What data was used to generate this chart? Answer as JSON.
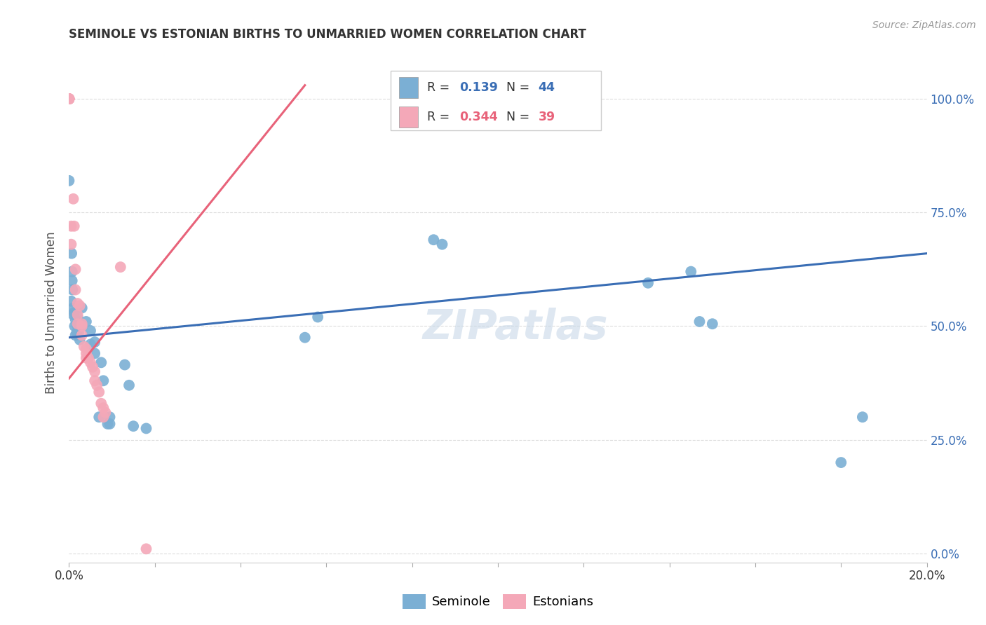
{
  "title": "SEMINOLE VS ESTONIAN BIRTHS TO UNMARRIED WOMEN CORRELATION CHART",
  "source": "Source: ZipAtlas.com",
  "ylabel": "Births to Unmarried Women",
  "seminole_color": "#7BAFD4",
  "estonian_color": "#F4A8B8",
  "seminole_line_color": "#3A6EB5",
  "estonian_line_color": "#E8637A",
  "watermark": "ZIPatlas",
  "xlim": [
    0.0,
    0.2
  ],
  "ylim": [
    -0.02,
    1.08
  ],
  "ytick_vals": [
    0.0,
    0.25,
    0.5,
    0.75,
    1.0
  ],
  "xtick_vals": [
    0.0,
    0.02,
    0.04,
    0.06,
    0.08,
    0.1,
    0.12,
    0.14,
    0.16,
    0.18,
    0.2
  ],
  "seminole_points": [
    [
      0.0005,
      0.555
    ],
    [
      0.0006,
      0.66
    ],
    [
      0.0007,
      0.6
    ],
    [
      0.0007,
      0.62
    ],
    [
      0.0008,
      0.58
    ],
    [
      0.001,
      0.525
    ],
    [
      0.001,
      0.54
    ],
    [
      0.0012,
      0.53
    ],
    [
      0.0013,
      0.5
    ],
    [
      0.0015,
      0.515
    ],
    [
      0.0015,
      0.48
    ],
    [
      0.0018,
      0.485
    ],
    [
      0.002,
      0.52
    ],
    [
      0.002,
      0.5
    ],
    [
      0.0022,
      0.485
    ],
    [
      0.0025,
      0.47
    ],
    [
      0.003,
      0.54
    ],
    [
      0.003,
      0.5
    ],
    [
      0.004,
      0.51
    ],
    [
      0.005,
      0.46
    ],
    [
      0.005,
      0.49
    ],
    [
      0.006,
      0.465
    ],
    [
      0.006,
      0.44
    ],
    [
      0.007,
      0.3
    ],
    [
      0.0075,
      0.42
    ],
    [
      0.008,
      0.38
    ],
    [
      0.009,
      0.285
    ],
    [
      0.0095,
      0.3
    ],
    [
      0.0095,
      0.285
    ],
    [
      0.013,
      0.415
    ],
    [
      0.014,
      0.37
    ],
    [
      0.015,
      0.28
    ],
    [
      0.018,
      0.275
    ],
    [
      0.055,
      0.475
    ],
    [
      0.058,
      0.52
    ],
    [
      0.085,
      0.69
    ],
    [
      0.087,
      0.68
    ],
    [
      0.135,
      0.595
    ],
    [
      0.145,
      0.62
    ],
    [
      0.147,
      0.51
    ],
    [
      0.15,
      0.505
    ],
    [
      0.18,
      0.2
    ],
    [
      0.185,
      0.3
    ],
    [
      0.0,
      0.82
    ]
  ],
  "estonian_points": [
    [
      0.0,
      1.0
    ],
    [
      0.0,
      1.0
    ],
    [
      0.0,
      1.0
    ],
    [
      0.0,
      1.0
    ],
    [
      0.0,
      1.0
    ],
    [
      0.0,
      1.0
    ],
    [
      0.0,
      1.0
    ],
    [
      0.0,
      1.0
    ],
    [
      0.0,
      1.0
    ],
    [
      0.0005,
      0.68
    ],
    [
      0.0005,
      0.72
    ],
    [
      0.001,
      0.78
    ],
    [
      0.0012,
      0.72
    ],
    [
      0.0015,
      0.58
    ],
    [
      0.0015,
      0.625
    ],
    [
      0.002,
      0.55
    ],
    [
      0.002,
      0.525
    ],
    [
      0.002,
      0.505
    ],
    [
      0.0025,
      0.545
    ],
    [
      0.003,
      0.505
    ],
    [
      0.003,
      0.5
    ],
    [
      0.003,
      0.48
    ],
    [
      0.0035,
      0.455
    ],
    [
      0.004,
      0.45
    ],
    [
      0.004,
      0.44
    ],
    [
      0.004,
      0.43
    ],
    [
      0.0045,
      0.43
    ],
    [
      0.005,
      0.42
    ],
    [
      0.0055,
      0.41
    ],
    [
      0.006,
      0.4
    ],
    [
      0.006,
      0.38
    ],
    [
      0.0065,
      0.37
    ],
    [
      0.007,
      0.355
    ],
    [
      0.0075,
      0.33
    ],
    [
      0.008,
      0.32
    ],
    [
      0.0085,
      0.31
    ],
    [
      0.008,
      0.3
    ],
    [
      0.012,
      0.63
    ],
    [
      0.018,
      0.01
    ]
  ],
  "blue_line": {
    "x0": 0.0,
    "y0": 0.475,
    "x1": 0.2,
    "y1": 0.66
  },
  "pink_line": {
    "x0": 0.0,
    "y0": 0.385,
    "x1": 0.055,
    "y1": 1.03
  }
}
